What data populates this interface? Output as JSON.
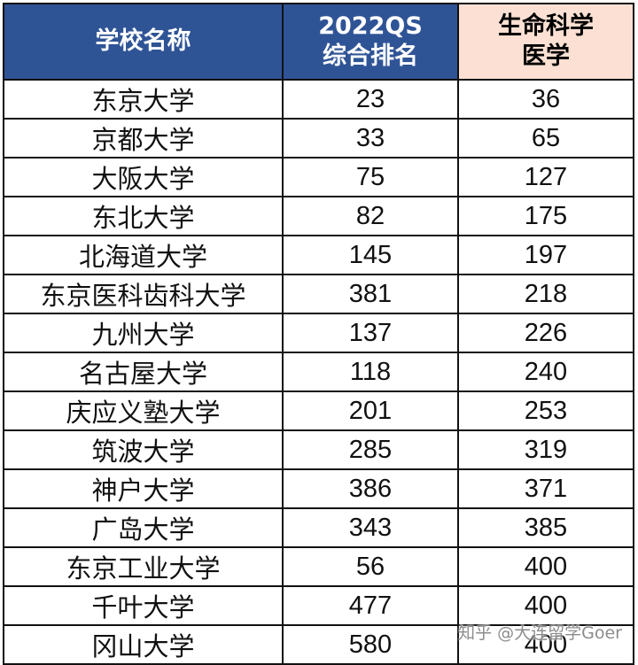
{
  "headers": {
    "school": "学校名称",
    "qs_line1": "2022QS",
    "qs_line2": "综合排名",
    "med_line1": "生命科学",
    "med_line2": "医学"
  },
  "colors": {
    "header_blue": "#2f5496",
    "header_peach": "#fbe0d3"
  },
  "rows": [
    {
      "school": "东京大学",
      "qs": "23",
      "med": "36"
    },
    {
      "school": "京都大学",
      "qs": "33",
      "med": "65"
    },
    {
      "school": "大阪大学",
      "qs": "75",
      "med": "127"
    },
    {
      "school": "东北大学",
      "qs": "82",
      "med": "175"
    },
    {
      "school": "北海道大学",
      "qs": "145",
      "med": "197"
    },
    {
      "school": "东京医科齿科大学",
      "qs": "381",
      "med": "218"
    },
    {
      "school": "九州大学",
      "qs": "137",
      "med": "226"
    },
    {
      "school": "名古屋大学",
      "qs": "118",
      "med": "240"
    },
    {
      "school": "庆应义塾大学",
      "qs": "201",
      "med": "253"
    },
    {
      "school": "筑波大学",
      "qs": "285",
      "med": "319"
    },
    {
      "school": "神户大学",
      "qs": "386",
      "med": "371"
    },
    {
      "school": "广岛大学",
      "qs": "343",
      "med": "385"
    },
    {
      "school": "东京工业大学",
      "qs": "56",
      "med": "400"
    },
    {
      "school": "千叶大学",
      "qs": "477",
      "med": "400"
    },
    {
      "school": "冈山大学",
      "qs": "580",
      "med": "400"
    }
  ],
  "watermark": "知乎 @大连留学Goer"
}
